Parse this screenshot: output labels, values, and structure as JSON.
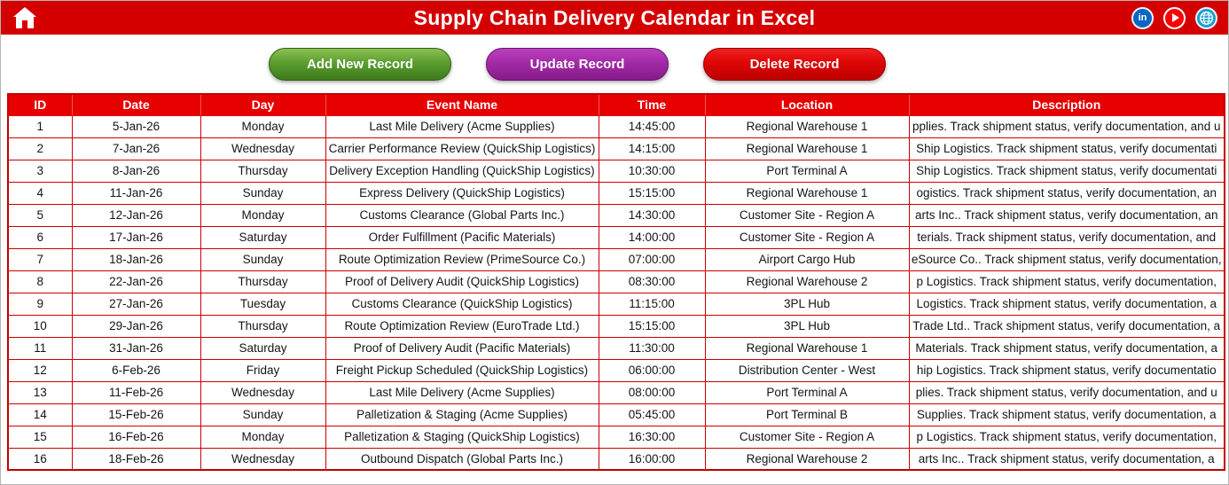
{
  "header": {
    "title": "Supply Chain Delivery Calendar in Excel",
    "home_icon": "home-icon",
    "social": {
      "linkedin_text": "in",
      "linkedin_icon": "linkedin-icon",
      "youtube_icon": "youtube-icon",
      "globe_icon": "globe-icon"
    }
  },
  "toolbar": {
    "add_label": "Add New Record",
    "update_label": "Update Record",
    "delete_label": "Delete Record"
  },
  "colors": {
    "topbar_red": "#d40000",
    "table_header_red": "#e60000",
    "grid_red": "#cc0000",
    "button_green": "#5a9e2f",
    "button_purple": "#a32aa7",
    "button_red": "#dd0606",
    "linkedin_blue": "#0a66c2",
    "youtube_red": "#ff0000",
    "globe_teal": "#1a9fd0"
  },
  "table": {
    "columns": [
      "ID",
      "Date",
      "Day",
      "Event Name",
      "Time",
      "Location",
      "Description"
    ],
    "rows": [
      {
        "id": "1",
        "date": "5-Jan-26",
        "day": "Monday",
        "event": "Last Mile Delivery (Acme Supplies)",
        "time": "14:45:00",
        "location": "Regional Warehouse 1",
        "description": "pplies. Track shipment status, verify documentation, and u"
      },
      {
        "id": "2",
        "date": "7-Jan-26",
        "day": "Wednesday",
        "event": "Carrier Performance Review (QuickShip Logistics)",
        "time": "14:15:00",
        "location": "Regional Warehouse 1",
        "description": "Ship Logistics. Track shipment status, verify documentati"
      },
      {
        "id": "3",
        "date": "8-Jan-26",
        "day": "Thursday",
        "event": "Delivery Exception Handling (QuickShip Logistics)",
        "time": "10:30:00",
        "location": "Port Terminal A",
        "description": "Ship Logistics. Track shipment status, verify documentati"
      },
      {
        "id": "4",
        "date": "11-Jan-26",
        "day": "Sunday",
        "event": "Express Delivery (QuickShip Logistics)",
        "time": "15:15:00",
        "location": "Regional Warehouse 1",
        "description": "ogistics. Track shipment status, verify documentation, an"
      },
      {
        "id": "5",
        "date": "12-Jan-26",
        "day": "Monday",
        "event": "Customs Clearance (Global Parts Inc.)",
        "time": "14:30:00",
        "location": "Customer Site - Region A",
        "description": "arts Inc.. Track shipment status, verify documentation, an"
      },
      {
        "id": "6",
        "date": "17-Jan-26",
        "day": "Saturday",
        "event": "Order Fulfillment (Pacific Materials)",
        "time": "14:00:00",
        "location": "Customer Site - Region A",
        "description": "terials. Track shipment status, verify documentation, and"
      },
      {
        "id": "7",
        "date": "18-Jan-26",
        "day": "Sunday",
        "event": "Route Optimization Review (PrimeSource Co.)",
        "time": "07:00:00",
        "location": "Airport Cargo Hub",
        "description": "eSource Co.. Track shipment status, verify documentation,"
      },
      {
        "id": "8",
        "date": "22-Jan-26",
        "day": "Thursday",
        "event": "Proof of Delivery Audit (QuickShip Logistics)",
        "time": "08:30:00",
        "location": "Regional Warehouse 2",
        "description": "p Logistics. Track shipment status, verify documentation,"
      },
      {
        "id": "9",
        "date": "27-Jan-26",
        "day": "Tuesday",
        "event": "Customs Clearance (QuickShip Logistics)",
        "time": "11:15:00",
        "location": "3PL Hub",
        "description": "Logistics. Track shipment status, verify documentation, a"
      },
      {
        "id": "10",
        "date": "29-Jan-26",
        "day": "Thursday",
        "event": "Route Optimization Review (EuroTrade Ltd.)",
        "time": "15:15:00",
        "location": "3PL Hub",
        "description": "Trade Ltd.. Track shipment status, verify documentation, a"
      },
      {
        "id": "11",
        "date": "31-Jan-26",
        "day": "Saturday",
        "event": "Proof of Delivery Audit (Pacific Materials)",
        "time": "11:30:00",
        "location": "Regional Warehouse 1",
        "description": "Materials. Track shipment status, verify documentation, a"
      },
      {
        "id": "12",
        "date": "6-Feb-26",
        "day": "Friday",
        "event": "Freight Pickup Scheduled (QuickShip Logistics)",
        "time": "06:00:00",
        "location": "Distribution Center - West",
        "description": "hip Logistics. Track shipment status, verify documentatio"
      },
      {
        "id": "13",
        "date": "11-Feb-26",
        "day": "Wednesday",
        "event": "Last Mile Delivery (Acme Supplies)",
        "time": "08:00:00",
        "location": "Port Terminal A",
        "description": "plies. Track shipment status, verify documentation, and u"
      },
      {
        "id": "14",
        "date": "15-Feb-26",
        "day": "Sunday",
        "event": "Palletization & Staging (Acme Supplies)",
        "time": "05:45:00",
        "location": "Port Terminal B",
        "description": "Supplies. Track shipment status, verify documentation, a"
      },
      {
        "id": "15",
        "date": "16-Feb-26",
        "day": "Monday",
        "event": "Palletization & Staging (QuickShip Logistics)",
        "time": "16:30:00",
        "location": "Customer Site - Region A",
        "description": "p Logistics. Track shipment status, verify documentation,"
      },
      {
        "id": "16",
        "date": "18-Feb-26",
        "day": "Wednesday",
        "event": "Outbound Dispatch (Global Parts Inc.)",
        "time": "16:00:00",
        "location": "Regional Warehouse 2",
        "description": "arts Inc.. Track shipment status, verify documentation, a"
      }
    ]
  }
}
